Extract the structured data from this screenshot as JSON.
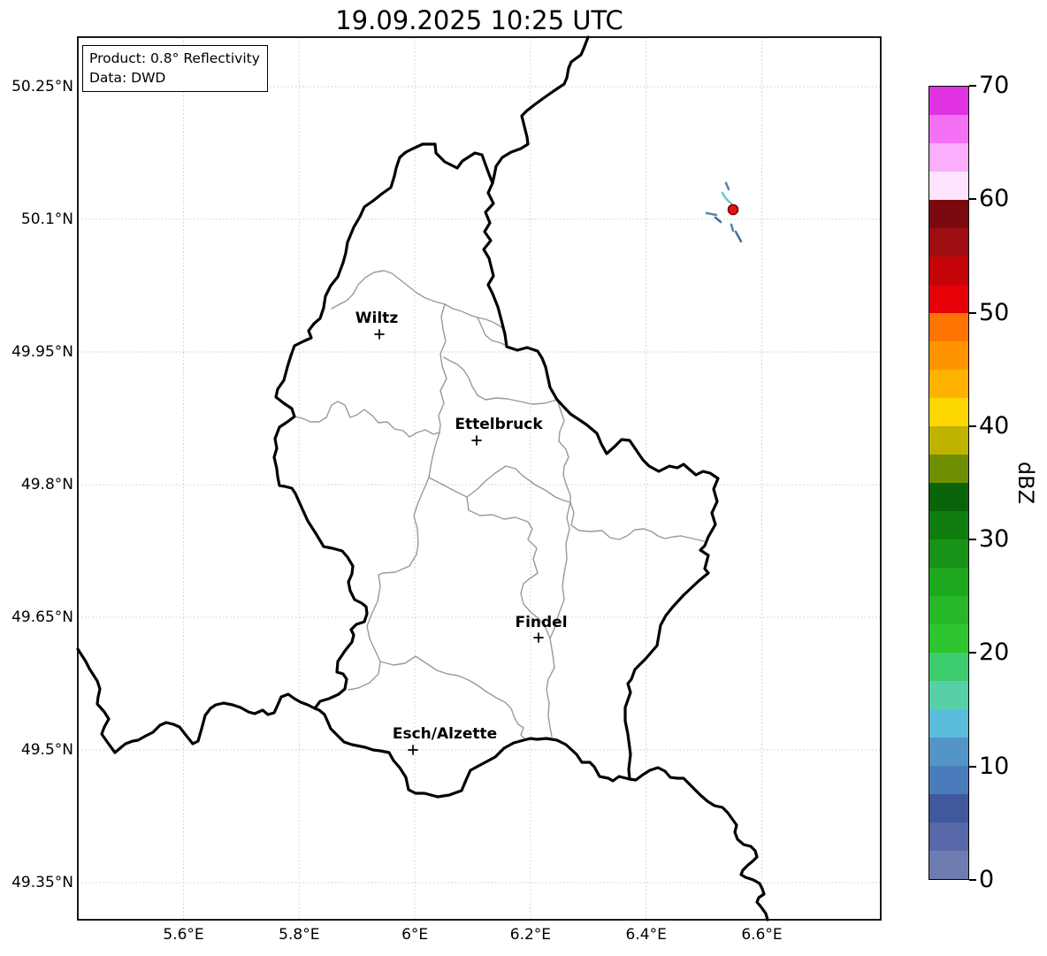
{
  "header": {
    "title": "19.09.2025 10:25 UTC"
  },
  "info_box": {
    "product_line": "Product: 0.8° Reflectivity",
    "data_line": "Data: DWD"
  },
  "axes": {
    "lat_labels": [
      "50.25°N",
      "50.1°N",
      "49.95°N",
      "49.8°N",
      "49.65°N",
      "49.5°N",
      "49.35°N"
    ],
    "lon_labels": [
      "5.6°E",
      "5.8°E",
      "6°E",
      "6.2°E",
      "6.4°E",
      "6.6°E"
    ]
  },
  "cities": [
    {
      "name": "Wiltz"
    },
    {
      "name": "Ettelbruck"
    },
    {
      "name": "Findel"
    },
    {
      "name": "Esch/Alzette"
    }
  ],
  "colorbar": {
    "axis_label": "dBZ",
    "tick_labels": [
      "70",
      "60",
      "50",
      "40",
      "30",
      "20",
      "10",
      "0"
    ],
    "value_min": 0,
    "value_max": 70,
    "step_per_cell": 2.5,
    "colors_bottom_to_top": [
      "#6F7CB0",
      "#5668A8",
      "#40589E",
      "#4A7CBB",
      "#5395C7",
      "#5BBCD9",
      "#57D0A8",
      "#3DCC6E",
      "#2EC52E",
      "#26B826",
      "#1EA81E",
      "#179417",
      "#107D10",
      "#0A640A",
      "#6F8F00",
      "#BFB300",
      "#FFD700",
      "#FFB300",
      "#FF9400",
      "#FF7400",
      "#E60008",
      "#C40408",
      "#9E0E12",
      "#7A0A10",
      "#FDE3FD",
      "#FBAEFB",
      "#F470F4",
      "#E032E0"
    ]
  },
  "radar": {
    "dot_color": "#e41414",
    "dot_edge_color": "#7a0000",
    "echo_color_teal": "#6fccc9",
    "echo_color_blue": "#5d85ad"
  }
}
